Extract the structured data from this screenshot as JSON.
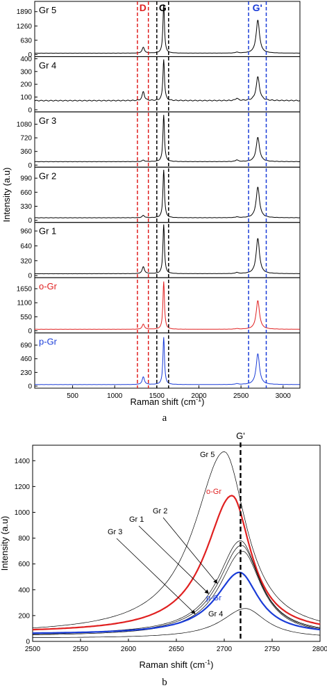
{
  "chart_data": [
    {
      "panel": "a",
      "caption": "a",
      "type": "line",
      "stacked_panels": true,
      "xlabel_main": "Raman shift (cm",
      "xlabel_sup": "-1",
      "xlabel_tail": ")",
      "ylabel": "Intensity (a.u)",
      "xlim": [
        50,
        3200
      ],
      "xticks": [
        500,
        1000,
        1500,
        2000,
        2500,
        3000
      ],
      "band_markers": [
        {
          "label": "D",
          "color": "#e02020",
          "x": [
            1270,
            1400
          ]
        },
        {
          "label": "G",
          "color": "#000000",
          "x": [
            1500,
            1640
          ]
        },
        {
          "label": "G'",
          "color": "#1a3cd8",
          "x": [
            2590,
            2800
          ]
        }
      ],
      "series": [
        {
          "name": "Gr 5",
          "color": "#000000",
          "ylim": [
            0,
            2250
          ],
          "yticks": [
            0,
            630,
            1260,
            1890
          ],
          "baseline": 60,
          "peaks": [
            {
              "x": 1340,
              "h": 260,
              "w": 16
            },
            {
              "x": 1582,
              "h": 2150,
              "w": 11
            },
            {
              "x": 2700,
              "h": 1460,
              "w": 24
            },
            {
              "x": 2450,
              "h": 40,
              "w": 18
            }
          ]
        },
        {
          "name": "Gr 4",
          "color": "#000000",
          "ylim": [
            0,
            400
          ],
          "yticks": [
            0,
            100,
            200,
            300,
            400
          ],
          "baseline": 72,
          "peaks": [
            {
              "x": 1340,
              "h": 70,
              "w": 16
            },
            {
              "x": 1582,
              "h": 325,
              "w": 11
            },
            {
              "x": 2700,
              "h": 185,
              "w": 24
            },
            {
              "x": 2450,
              "h": 18,
              "w": 18
            }
          ]
        },
        {
          "name": "Gr 3",
          "color": "#000000",
          "ylim": [
            0,
            1350
          ],
          "yticks": [
            0,
            360,
            720,
            1080
          ],
          "baseline": 90,
          "peaks": [
            {
              "x": 1340,
              "h": 40,
              "w": 16
            },
            {
              "x": 1582,
              "h": 1240,
              "w": 11
            },
            {
              "x": 2700,
              "h": 640,
              "w": 24
            },
            {
              "x": 2450,
              "h": 45,
              "w": 18
            }
          ]
        },
        {
          "name": "Gr 2",
          "color": "#000000",
          "ylim": [
            0,
            1200
          ],
          "yticks": [
            0,
            330,
            660,
            990
          ],
          "baseline": 60,
          "peaks": [
            {
              "x": 1340,
              "h": 55,
              "w": 16
            },
            {
              "x": 1582,
              "h": 1130,
              "w": 11
            },
            {
              "x": 2700,
              "h": 720,
              "w": 24
            },
            {
              "x": 2450,
              "h": 20,
              "w": 18
            }
          ]
        },
        {
          "name": "Gr 1",
          "color": "#000000",
          "ylim": [
            0,
            1100
          ],
          "yticks": [
            0,
            320,
            640,
            960
          ],
          "baseline": 40,
          "peaks": [
            {
              "x": 1340,
              "h": 150,
              "w": 16
            },
            {
              "x": 1582,
              "h": 1060,
              "w": 11
            },
            {
              "x": 2700,
              "h": 760,
              "w": 24
            },
            {
              "x": 2450,
              "h": 25,
              "w": 18
            }
          ]
        },
        {
          "name": "o-Gr",
          "color": "#e02020",
          "ylim": [
            0,
            2000
          ],
          "yticks": [
            0,
            550,
            1100,
            1650
          ],
          "baseline": 60,
          "peaks": [
            {
              "x": 1340,
              "h": 200,
              "w": 16
            },
            {
              "x": 1582,
              "h": 1870,
              "w": 11
            },
            {
              "x": 2700,
              "h": 1120,
              "w": 24
            },
            {
              "x": 2450,
              "h": 25,
              "w": 18
            }
          ]
        },
        {
          "name": "p-Gr",
          "color": "#1a3cd8",
          "ylim": [
            0,
            860
          ],
          "yticks": [
            0,
            230,
            460,
            690
          ],
          "baseline": 25,
          "peaks": [
            {
              "x": 1340,
              "h": 130,
              "w": 16
            },
            {
              "x": 1582,
              "h": 800,
              "w": 11
            },
            {
              "x": 2700,
              "h": 520,
              "w": 24
            },
            {
              "x": 2450,
              "h": 15,
              "w": 18
            }
          ]
        }
      ]
    },
    {
      "panel": "b",
      "caption": "b",
      "type": "line",
      "xlabel_main": "Raman shift (cm",
      "xlabel_sup": "-1",
      "xlabel_tail": ")",
      "ylabel": "Intensity (a.u)",
      "xlim": [
        2500,
        2800
      ],
      "ylim": [
        0,
        1520
      ],
      "xticks": [
        2500,
        2550,
        2600,
        2650,
        2700,
        2750,
        2800
      ],
      "yticks": [
        0,
        200,
        400,
        600,
        800,
        1000,
        1200,
        1400
      ],
      "marker_line": {
        "label": "G'",
        "x": 2717
      },
      "series": [
        {
          "name": "Gr 5",
          "color": "#000000",
          "width": 0.7,
          "peak_x": 2700,
          "peak_y": 1470,
          "base": 55,
          "sl": 38,
          "sr": 28
        },
        {
          "name": "o-Gr",
          "color": "#e02020",
          "width": 2.2,
          "peak_x": 2708,
          "peak_y": 1130,
          "base": 65,
          "sl": 33,
          "sr": 24
        },
        {
          "name": "Gr 1",
          "color": "#000000",
          "width": 0.7,
          "peak_x": 2717,
          "peak_y": 780,
          "base": 50,
          "sl": 29,
          "sr": 24
        },
        {
          "name": "Gr 2",
          "color": "#000000",
          "width": 0.7,
          "peak_x": 2718,
          "peak_y": 745,
          "base": 45,
          "sl": 29,
          "sr": 24
        },
        {
          "name": "Gr 3",
          "color": "#000000",
          "width": 0.7,
          "peak_x": 2719,
          "peak_y": 700,
          "base": 40,
          "sl": 29,
          "sr": 24
        },
        {
          "name": "p-Gr",
          "color": "#1a3cd8",
          "width": 2.2,
          "peak_x": 2716,
          "peak_y": 535,
          "base": 55,
          "sl": 30,
          "sr": 24
        },
        {
          "name": "Gr 4",
          "color": "#000000",
          "width": 0.7,
          "peak_x": 2722,
          "peak_y": 255,
          "base": 25,
          "sl": 30,
          "sr": 26
        }
      ],
      "annotations": [
        {
          "text": "Gr 5",
          "color": "#000000"
        },
        {
          "text": "o-Gr",
          "color": "#e02020"
        },
        {
          "text": "Gr 2",
          "color": "#000000"
        },
        {
          "text": "Gr 1",
          "color": "#000000"
        },
        {
          "text": "Gr 3",
          "color": "#000000"
        },
        {
          "text": "p-Gr",
          "color": "#1a3cd8"
        },
        {
          "text": "Gr 4",
          "color": "#000000"
        }
      ]
    }
  ]
}
